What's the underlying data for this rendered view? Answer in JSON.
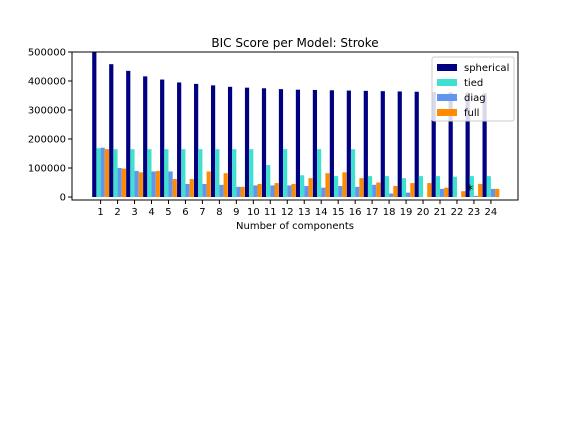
{
  "chart_data": {
    "type": "bar",
    "title": "BIC Score per Model: Stroke",
    "xlabel": "Number of components",
    "ylabel": "",
    "ylim": [
      0,
      500000
    ],
    "yticks": [
      0,
      100000,
      200000,
      300000,
      400000,
      500000
    ],
    "ytick_labels": [
      "0",
      "100000",
      "200000",
      "300000",
      "400000",
      "500000"
    ],
    "categories": [
      "1",
      "2",
      "3",
      "4",
      "5",
      "6",
      "7",
      "8",
      "9",
      "10",
      "11",
      "12",
      "13",
      "14",
      "15",
      "16",
      "17",
      "18",
      "19",
      "20",
      "21",
      "22",
      "23",
      "24"
    ],
    "legend_position": "top-right",
    "series": [
      {
        "name": "spherical",
        "color": "#000080",
        "values": [
          500000,
          458000,
          435000,
          416000,
          405000,
          395000,
          390000,
          385000,
          380000,
          377000,
          375000,
          372000,
          370000,
          369000,
          368000,
          367000,
          366000,
          365000,
          364000,
          363000,
          362000,
          361000,
          360000,
          358000
        ]
      },
      {
        "name": "tied",
        "color": "#40e0d0",
        "values": [
          168000,
          165000,
          165000,
          165000,
          165000,
          165000,
          165000,
          165000,
          165000,
          165000,
          110000,
          165000,
          75000,
          165000,
          72000,
          165000,
          72000,
          72000,
          65000,
          72000,
          72000,
          70000,
          72000,
          72000
        ]
      },
      {
        "name": "diag",
        "color": "#6495ed",
        "values": [
          170000,
          100000,
          90000,
          88000,
          88000,
          45000,
          45000,
          42000,
          35000,
          40000,
          40000,
          40000,
          38000,
          32000,
          38000,
          35000,
          42000,
          12000,
          15000,
          0,
          28000,
          0,
          4000,
          28000
        ]
      },
      {
        "name": "full",
        "color": "#ff8c00",
        "values": [
          165000,
          98000,
          85000,
          90000,
          62000,
          62000,
          88000,
          82000,
          35000,
          45000,
          48000,
          45000,
          65000,
          82000,
          85000,
          65000,
          50000,
          38000,
          48000,
          48000,
          32000,
          20000,
          45000,
          28000
        ]
      }
    ],
    "annotations": [
      {
        "text": "*",
        "category": "23",
        "y": 30000
      }
    ]
  }
}
